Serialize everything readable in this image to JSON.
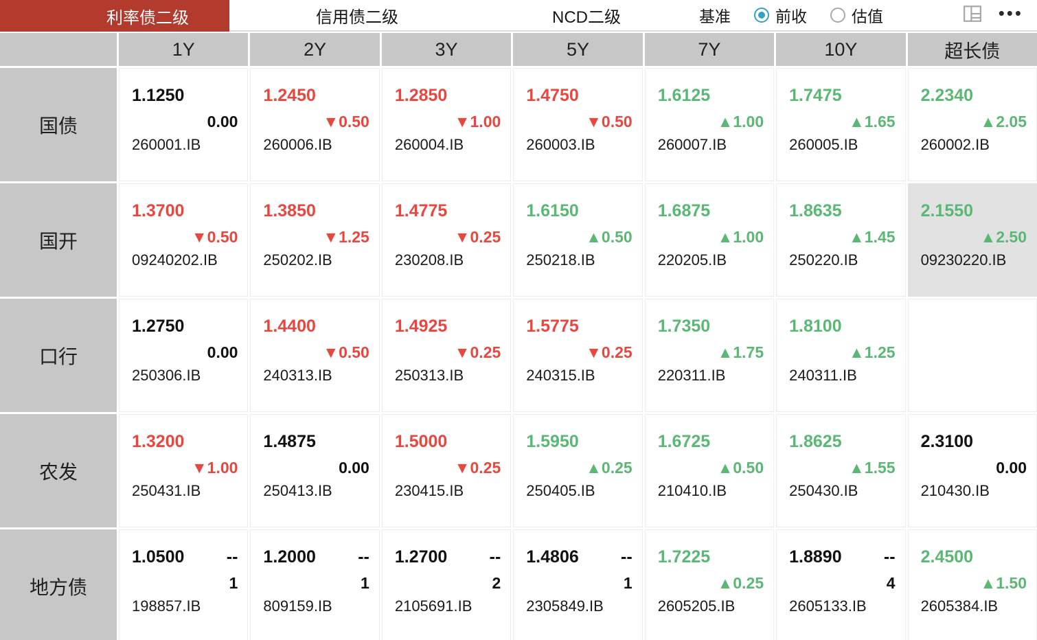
{
  "header": {
    "tabs": [
      {
        "label": "利率债二级",
        "selected": true
      },
      {
        "label": "信用债二级",
        "selected": false
      },
      {
        "label": "NCD二级",
        "selected": false
      }
    ],
    "benchmark_label": "基准",
    "benchmark_options": [
      {
        "label": "前收",
        "selected": true
      },
      {
        "label": "估值",
        "selected": false
      }
    ],
    "more_glyph": "•••"
  },
  "colors": {
    "tab_selected_bg": "#b23b2e",
    "up": "#5bb874",
    "down": "#e8473f",
    "header_bg": "#c7c7c7",
    "highlight_bg": "#e2e2e2",
    "radio_selected": "#33a3c4"
  },
  "glyphs": {
    "up": "▲",
    "down": "▼"
  },
  "table": {
    "columns": [
      "1Y",
      "2Y",
      "3Y",
      "5Y",
      "7Y",
      "10Y",
      "超长债"
    ],
    "rows": [
      {
        "label": "国债",
        "cells": [
          {
            "value": "1.1250",
            "trend": "flat",
            "change": "0.00",
            "code": "260001.IB"
          },
          {
            "value": "1.2450",
            "trend": "down",
            "change": "0.50",
            "code": "260006.IB"
          },
          {
            "value": "1.2850",
            "trend": "down",
            "change": "1.00",
            "code": "260004.IB"
          },
          {
            "value": "1.4750",
            "trend": "down",
            "change": "0.50",
            "code": "260003.IB"
          },
          {
            "value": "1.6125",
            "trend": "up",
            "change": "1.00",
            "code": "260007.IB"
          },
          {
            "value": "1.7475",
            "trend": "up",
            "change": "1.65",
            "code": "260005.IB"
          },
          {
            "value": "2.2340",
            "trend": "up",
            "change": "2.05",
            "code": "260002.IB"
          }
        ]
      },
      {
        "label": "国开",
        "cells": [
          {
            "value": "1.3700",
            "trend": "down",
            "change": "0.50",
            "code": "09240202.IB"
          },
          {
            "value": "1.3850",
            "trend": "down",
            "change": "1.25",
            "code": "250202.IB"
          },
          {
            "value": "1.4775",
            "trend": "down",
            "change": "0.25",
            "code": "230208.IB"
          },
          {
            "value": "1.6150",
            "trend": "up",
            "change": "0.50",
            "code": "250218.IB"
          },
          {
            "value": "1.6875",
            "trend": "up",
            "change": "1.00",
            "code": "220205.IB"
          },
          {
            "value": "1.8635",
            "trend": "up",
            "change": "1.45",
            "code": "250220.IB"
          },
          {
            "value": "2.1550",
            "trend": "up",
            "change": "2.50",
            "code": "09230220.IB",
            "highlight": true
          }
        ]
      },
      {
        "label": "口行",
        "cells": [
          {
            "value": "1.2750",
            "trend": "flat",
            "change": "0.00",
            "code": "250306.IB"
          },
          {
            "value": "1.4400",
            "trend": "down",
            "change": "0.50",
            "code": "240313.IB"
          },
          {
            "value": "1.4925",
            "trend": "down",
            "change": "0.25",
            "code": "250313.IB"
          },
          {
            "value": "1.5775",
            "trend": "down",
            "change": "0.25",
            "code": "240315.IB"
          },
          {
            "value": "1.7350",
            "trend": "up",
            "change": "1.75",
            "code": "220311.IB"
          },
          {
            "value": "1.8100",
            "trend": "up",
            "change": "1.25",
            "code": "240311.IB"
          },
          {
            "empty": true
          }
        ]
      },
      {
        "label": "农发",
        "cells": [
          {
            "value": "1.3200",
            "trend": "down",
            "change": "1.00",
            "code": "250431.IB"
          },
          {
            "value": "1.4875",
            "trend": "flat",
            "change": "0.00",
            "code": "250413.IB"
          },
          {
            "value": "1.5000",
            "trend": "down",
            "change": "0.25",
            "code": "230415.IB"
          },
          {
            "value": "1.5950",
            "trend": "up",
            "change": "0.25",
            "code": "250405.IB"
          },
          {
            "value": "1.6725",
            "trend": "up",
            "change": "0.50",
            "code": "210410.IB"
          },
          {
            "value": "1.8625",
            "trend": "up",
            "change": "1.55",
            "code": "250430.IB"
          },
          {
            "value": "2.3100",
            "trend": "flat",
            "change": "0.00",
            "code": "210430.IB"
          }
        ]
      },
      {
        "label": "地方债",
        "cells": [
          {
            "value": "1.0500",
            "trend": "dash",
            "dash": "--",
            "count": "1",
            "code": "198857.IB"
          },
          {
            "value": "1.2000",
            "trend": "dash",
            "dash": "--",
            "count": "1",
            "code": "809159.IB"
          },
          {
            "value": "1.2700",
            "trend": "dash",
            "dash": "--",
            "count": "2",
            "code": "2105691.IB"
          },
          {
            "value": "1.4806",
            "trend": "dash",
            "dash": "--",
            "count": "1",
            "code": "2305849.IB"
          },
          {
            "value": "1.7225",
            "trend": "up",
            "change": "0.25",
            "code": "2605205.IB"
          },
          {
            "value": "1.8890",
            "trend": "dash",
            "dash": "--",
            "count": "4",
            "code": "2605133.IB"
          },
          {
            "value": "2.4500",
            "trend": "up",
            "change": "1.50",
            "code": "2605384.IB"
          }
        ]
      }
    ]
  }
}
